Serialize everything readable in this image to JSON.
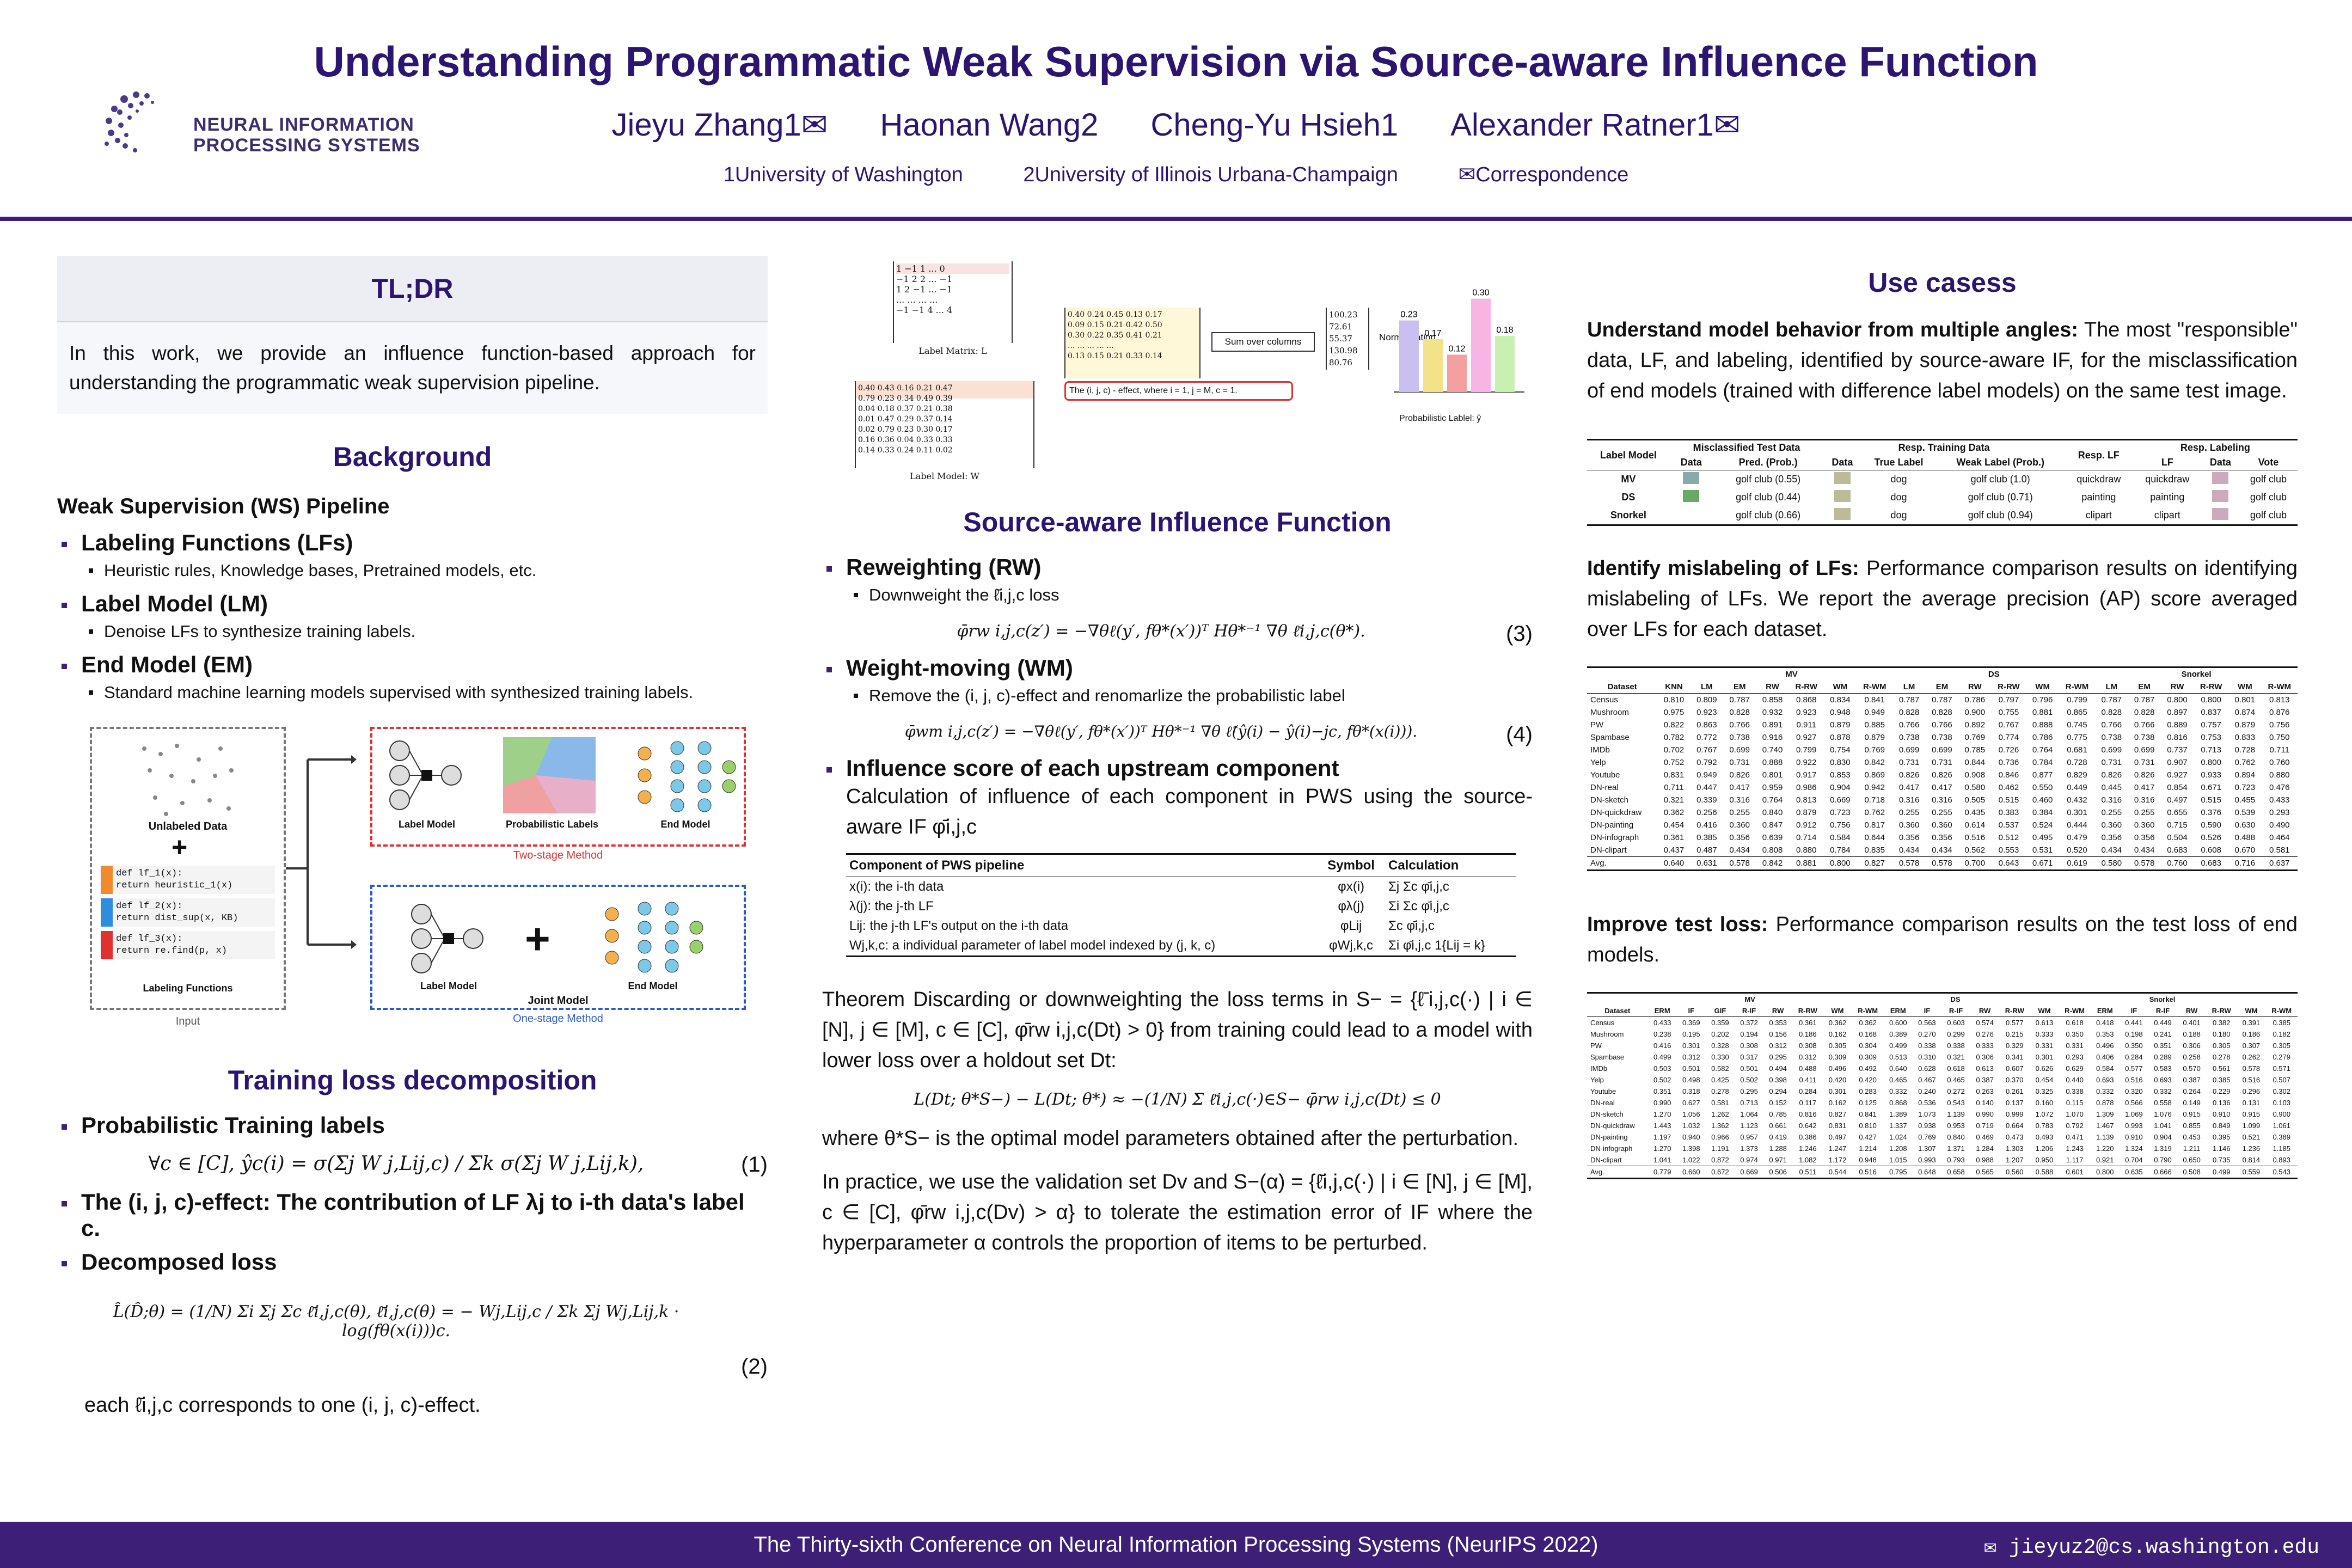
{
  "header": {
    "logo_text": [
      "NEURAL INFORMATION",
      "PROCESSING SYSTEMS"
    ],
    "title": "Understanding Programmatic Weak Supervision via Source-aware Influence Function",
    "authors": [
      "Jieyu Zhang1✉",
      "Haonan Wang2",
      "Cheng-Yu Hsieh1",
      "Alexander Ratner1✉"
    ],
    "affiliations": [
      "1University of Washington",
      "2University of Illinois Urbana-Champaign",
      "✉Correspondence"
    ]
  },
  "tldr": {
    "title": "TL;DR",
    "text": "In this work, we provide an influence function-based approach for understanding the programmatic weak supervision pipeline."
  },
  "background": {
    "title": "Background",
    "subtitle": "Weak Supervision (WS) Pipeline",
    "items": [
      {
        "label": "Labeling Functions (LFs)",
        "detail": "Heuristic rules, Knowledge bases, Pretrained models, etc."
      },
      {
        "label": "Label Model (LM)",
        "detail": "Denoise LFs to synthesize training labels."
      },
      {
        "label": "End Model (EM)",
        "detail": "Standard machine learning models supervised with synthesized training labels."
      }
    ],
    "figure": {
      "unlabeled": "Unlabeled Data",
      "lf_code": [
        "def lf_1(x):",
        "  return heuristic_1(x)",
        "def lf_2(x):",
        "  return dist_sup(x, KB)",
        "def lf_3(x):",
        "  return re.find(p, x)"
      ],
      "lf_label": "Labeling Functions",
      "input": "Input",
      "label_model": "Label Model",
      "prob_labels": "Probabilistic Labels",
      "end_model": "End Model",
      "two_stage": "Two-stage Method",
      "joint_model": "Joint Model",
      "one_stage": "One-stage Method"
    }
  },
  "training_loss": {
    "title": "Training loss decomposition",
    "items": [
      "Probabilistic Training labels",
      "The (i, j, c)-effect: The contribution of LF λj to i-th data's label c.",
      "Decomposed loss"
    ],
    "eq1": "∀c ∈ [C],   ŷc(i) = σ(Σj W j,Lij,c) / Σk σ(Σj W j,Lij,k),",
    "eq2": "L̂(D̂;θ) = (1/N) Σi Σj Σc ℓ̄i,j,c(θ),   ℓ̄i,j,c(θ) = − Wj,Lij,c / Σk Σj Wj,Lij,k · log(fθ(x(i)))c.",
    "footnote": "each ℓ̄i,j,c corresponds to one (i, j, c)-effect.",
    "eqnums": [
      "(1)",
      "(2)"
    ]
  },
  "diagram": {
    "label_matrix": "Label Matrix: L",
    "label_model": "Label Model: W",
    "sum_cols": "Sum over columns",
    "normalization": "Normalization",
    "sums": [
      "100.23",
      "72.61",
      "55.37",
      "130.98",
      "80.76"
    ],
    "probs": [
      "0.23",
      "0.17",
      "0.12",
      "0.30",
      "0.18"
    ],
    "prob_label": "Probabilistic Lablel: ŷ",
    "effect_note": "The (i, j, c) - effect, where i = 1, j = M, c = 1."
  },
  "influence": {
    "title": "Source-aware Influence Function",
    "rw_title": "Reweighting (RW)",
    "rw_detail": "Downweight the ℓ̄i,j,c loss",
    "eq3": "φ̄rw i,j,c(z′) = −∇θℓ(y′, fθ*(x′))ᵀ Hθ*⁻¹ ∇θ ℓ̄i,j,c(θ*).",
    "wm_title": "Weight-moving (WM)",
    "wm_detail": "Remove the (i, j, c)-effect and renomarlize the probabilistic label",
    "eq4": "φ̄wm i,j,c(z′) = −∇θℓ(y′, fθ*(x′))ᵀ Hθ*⁻¹ ∇θ ℓ̂(ŷ(i) − ŷ(i)−jc, fθ*(x(i))).",
    "score_title": "Influence score of each upstream component",
    "score_text": "Calculation of influence of each component in PWS using the source-aware IF φ̄i,j,c",
    "eqnums": [
      "(3)",
      "(4)"
    ],
    "table": {
      "headers": [
        "Component of PWS pipeline",
        "Symbol",
        "Calculation"
      ],
      "rows": [
        [
          "x(i): the i-th data",
          "φx(i)",
          "Σj Σc φ̄i,j,c"
        ],
        [
          "λ(j): the j-th LF",
          "φλ(j)",
          "Σi Σc φ̄i,j,c"
        ],
        [
          "Lij: the j-th LF's output on the i-th data",
          "φLij",
          "Σc φ̄i,j,c"
        ],
        [
          "Wj,k,c: a individual parameter of label model indexed by (j, k, c)",
          "φWj,k,c",
          "Σi φ̄i,j,c 1{Lij = k}"
        ]
      ]
    },
    "theorem": "Theorem  Discarding or downweighting the loss terms in S− = {ℓ̄i,j,c(·) | i ∈ [N], j ∈ [M], c ∈ [C], φ̄rw i,j,c(Dt) > 0} from training could lead to a model with lower loss over a holdout set Dt:",
    "eq5": "L(Dt; θ*S−) − L(Dt; θ*) ≈ −(1/N) Σ ℓ̄i,j,c(·)∈S− φ̄rw i,j,c(Dt) ≤ 0",
    "after": "where θ*S− is the optimal model parameters obtained after the perturbation.",
    "practice": "In practice, we use the validation set Dv and S−(α) = {ℓ̄i,j,c(·) | i ∈ [N], j ∈ [M], c ∈ [C], φ̄rw i,j,c(Dv) > α} to tolerate the estimation error of IF where the hyperparameter α controls the proportion of items to be perturbed."
  },
  "usecases": {
    "title": "Use casess",
    "uc1_head": "Understand model behavior from multiple angles:",
    "uc1_text": "The most \"responsible\" data, LF, and labeling, identified by source-aware IF, for the misclassification of end models (trained with difference label models) on the same test image.",
    "t1": {
      "groups": [
        "Misclassified Test Data",
        "Resp. Training Data",
        "Resp. LF",
        "Resp. Labeling"
      ],
      "headers": [
        "Label Model",
        "Data",
        "Pred. (Prob.)",
        "Data",
        "True Label",
        "Weak Label (Prob.)",
        "",
        "LF",
        "Data",
        "Vote"
      ],
      "rows": [
        [
          "MV",
          "golf club (0.55)",
          "dog",
          "golf club (1.0)",
          "quickdraw",
          "quickdraw",
          "golf club"
        ],
        [
          "DS",
          "golf club (0.44)",
          "dog",
          "golf club (0.71)",
          "painting",
          "painting",
          "golf club"
        ],
        [
          "Snorkel",
          "golf club (0.66)",
          "dog",
          "golf club (0.94)",
          "clipart",
          "clipart",
          "golf club"
        ]
      ]
    },
    "uc2_head": "Identify mislabeling of LFs:",
    "uc2_text": "Performance comparison results on identifying mislabeling of LFs. We report the average precision (AP) score averaged over LFs for each dataset.",
    "t2": {
      "groups": [
        "MV",
        "DS",
        "Snorkel"
      ],
      "headers": [
        "Dataset",
        "KNN",
        "LM",
        "EM",
        "RW",
        "R-RW",
        "WM",
        "R-WM",
        "LM",
        "EM",
        "RW",
        "R-RW",
        "WM",
        "R-WM",
        "LM",
        "EM",
        "RW",
        "R-RW",
        "WM",
        "R-WM"
      ],
      "rows": [
        [
          "Census",
          "0.810",
          "0.809",
          "0.787",
          "0.858",
          "0.868",
          "0.834",
          "0.841",
          "0.787",
          "0.787",
          "0.786",
          "0.797",
          "0.796",
          "0.799",
          "0.787",
          "0.787",
          "0.800",
          "0.800",
          "0.801",
          "0.813"
        ],
        [
          "Mushroom",
          "0.975",
          "0.923",
          "0.828",
          "0.932",
          "0.923",
          "0.948",
          "0.949",
          "0.828",
          "0.828",
          "0.900",
          "0.755",
          "0.881",
          "0.865",
          "0.828",
          "0.828",
          "0.897",
          "0.837",
          "0.874",
          "0.876"
        ],
        [
          "PW",
          "0.822",
          "0.863",
          "0.766",
          "0.891",
          "0.911",
          "0.879",
          "0.885",
          "0.766",
          "0.766",
          "0.892",
          "0.767",
          "0.888",
          "0.745",
          "0.766",
          "0.766",
          "0.889",
          "0.757",
          "0.879",
          "0.756"
        ],
        [
          "Spambase",
          "0.782",
          "0.772",
          "0.738",
          "0.916",
          "0.927",
          "0.878",
          "0.879",
          "0.738",
          "0.738",
          "0.769",
          "0.774",
          "0.786",
          "0.775",
          "0.738",
          "0.738",
          "0.816",
          "0.753",
          "0.833",
          "0.750"
        ],
        [
          "IMDb",
          "0.702",
          "0.767",
          "0.699",
          "0.740",
          "0.799",
          "0.754",
          "0.769",
          "0.699",
          "0.699",
          "0.785",
          "0.726",
          "0.764",
          "0.681",
          "0.699",
          "0.699",
          "0.737",
          "0.713",
          "0.728",
          "0.711"
        ],
        [
          "Yelp",
          "0.752",
          "0.792",
          "0.731",
          "0.888",
          "0.922",
          "0.830",
          "0.842",
          "0.731",
          "0.731",
          "0.844",
          "0.736",
          "0.784",
          "0.728",
          "0.731",
          "0.731",
          "0.907",
          "0.800",
          "0.762",
          "0.760"
        ],
        [
          "Youtube",
          "0.831",
          "0.949",
          "0.826",
          "0.801",
          "0.917",
          "0.853",
          "0.869",
          "0.826",
          "0.826",
          "0.908",
          "0.846",
          "0.877",
          "0.829",
          "0.826",
          "0.826",
          "0.927",
          "0.933",
          "0.894",
          "0.880"
        ],
        [
          "DN-real",
          "0.711",
          "0.447",
          "0.417",
          "0.959",
          "0.986",
          "0.904",
          "0.942",
          "0.417",
          "0.417",
          "0.580",
          "0.462",
          "0.550",
          "0.449",
          "0.445",
          "0.417",
          "0.854",
          "0.671",
          "0.723",
          "0.476"
        ],
        [
          "DN-sketch",
          "0.321",
          "0.339",
          "0.316",
          "0.764",
          "0.813",
          "0.669",
          "0.718",
          "0.316",
          "0.316",
          "0.505",
          "0.515",
          "0.460",
          "0.432",
          "0.316",
          "0.316",
          "0.497",
          "0.515",
          "0.455",
          "0.433"
        ],
        [
          "DN-quickdraw",
          "0.362",
          "0.256",
          "0.255",
          "0.840",
          "0.879",
          "0.723",
          "0.762",
          "0.255",
          "0.255",
          "0.435",
          "0.383",
          "0.384",
          "0.301",
          "0.255",
          "0.255",
          "0.655",
          "0.376",
          "0.539",
          "0.293"
        ],
        [
          "DN-painting",
          "0.454",
          "0.416",
          "0.360",
          "0.847",
          "0.912",
          "0.756",
          "0.817",
          "0.360",
          "0.360",
          "0.614",
          "0.537",
          "0.524",
          "0.444",
          "0.360",
          "0.360",
          "0.715",
          "0.590",
          "0.630",
          "0.490"
        ],
        [
          "DN-infograph",
          "0.361",
          "0.385",
          "0.356",
          "0.639",
          "0.714",
          "0.584",
          "0.644",
          "0.356",
          "0.356",
          "0.516",
          "0.512",
          "0.495",
          "0.479",
          "0.356",
          "0.356",
          "0.504",
          "0.526",
          "0.488",
          "0.464"
        ],
        [
          "DN-clipart",
          "0.437",
          "0.487",
          "0.434",
          "0.808",
          "0.880",
          "0.784",
          "0.835",
          "0.434",
          "0.434",
          "0.562",
          "0.553",
          "0.531",
          "0.520",
          "0.434",
          "0.434",
          "0.683",
          "0.608",
          "0.670",
          "0.581"
        ],
        [
          "Avg.",
          "0.640",
          "0.631",
          "0.578",
          "0.842",
          "0.881",
          "0.800",
          "0.827",
          "0.578",
          "0.578",
          "0.700",
          "0.643",
          "0.671",
          "0.619",
          "0.580",
          "0.578",
          "0.760",
          "0.683",
          "0.716",
          "0.637"
        ]
      ]
    },
    "uc3_head": "Improve test loss:",
    "uc3_text": "Performance comparison results on the test loss of end models.",
    "t3": {
      "groups": [
        "MV",
        "DS",
        "Snorkel"
      ],
      "headers": [
        "Dataset",
        "ERM",
        "IF",
        "GIF",
        "R-IF",
        "RW",
        "R-RW",
        "WM",
        "R-WM",
        "ERM",
        "IF",
        "R-IF",
        "RW",
        "R-RW",
        "WM",
        "R-WM",
        "ERM",
        "IF",
        "R-IF",
        "RW",
        "R-RW",
        "WM",
        "R-WM"
      ],
      "rows": [
        [
          "Census",
          "0.433",
          "0.369",
          "0.359",
          "0.372",
          "0.353",
          "0.361",
          "0.362",
          "0.362",
          "0.600",
          "0.563",
          "0.603",
          "0.574",
          "0.577",
          "0.613",
          "0.618",
          "0.418",
          "0.441",
          "0.449",
          "0.401",
          "0.382",
          "0.391",
          "0.385"
        ],
        [
          "Mushroom",
          "0.238",
          "0.195",
          "0.202",
          "0.194",
          "0.156",
          "0.186",
          "0.162",
          "0.168",
          "0.389",
          "0.270",
          "0.299",
          "0.276",
          "0.215",
          "0.333",
          "0.350",
          "0.353",
          "0.198",
          "0.241",
          "0.188",
          "0.180",
          "0.186",
          "0.182"
        ],
        [
          "PW",
          "0.416",
          "0.301",
          "0.328",
          "0.308",
          "0.312",
          "0.308",
          "0.305",
          "0.304",
          "0.499",
          "0.338",
          "0.338",
          "0.333",
          "0.329",
          "0.331",
          "0.331",
          "0.496",
          "0.350",
          "0.351",
          "0.306",
          "0.305",
          "0.307",
          "0.305"
        ],
        [
          "Spambase",
          "0.499",
          "0.312",
          "0.330",
          "0.317",
          "0.295",
          "0.312",
          "0.309",
          "0.309",
          "0.513",
          "0.310",
          "0.321",
          "0.306",
          "0.341",
          "0.301",
          "0.293",
          "0.406",
          "0.284",
          "0.289",
          "0.258",
          "0.278",
          "0.262",
          "0.279"
        ],
        [
          "IMDb",
          "0.503",
          "0.501",
          "0.582",
          "0.501",
          "0.494",
          "0.488",
          "0.496",
          "0.492",
          "0.640",
          "0.628",
          "0.618",
          "0.613",
          "0.607",
          "0.626",
          "0.629",
          "0.584",
          "0.577",
          "0.583",
          "0.570",
          "0.561",
          "0.578",
          "0.571"
        ],
        [
          "Yelp",
          "0.502",
          "0.498",
          "0.425",
          "0.502",
          "0.398",
          "0.411",
          "0.420",
          "0.420",
          "0.465",
          "0.467",
          "0.465",
          "0.387",
          "0.370",
          "0.454",
          "0.440",
          "0.693",
          "0.516",
          "0.693",
          "0.387",
          "0.385",
          "0.516",
          "0.507"
        ],
        [
          "Youtube",
          "0.351",
          "0.318",
          "0.278",
          "0.295",
          "0.294",
          "0.284",
          "0.301",
          "0.283",
          "0.332",
          "0.240",
          "0.272",
          "0.263",
          "0.261",
          "0.325",
          "0.338",
          "0.332",
          "0.320",
          "0.332",
          "0.264",
          "0.229",
          "0.296",
          "0.302"
        ],
        [
          "DN-real",
          "0.990",
          "0.627",
          "0.581",
          "0.713",
          "0.152",
          "0.117",
          "0.162",
          "0.125",
          "0.868",
          "0.536",
          "0.543",
          "0.140",
          "0.137",
          "0.160",
          "0.115",
          "0.878",
          "0.566",
          "0.558",
          "0.149",
          "0.136",
          "0.131",
          "0.103"
        ],
        [
          "DN-sketch",
          "1.270",
          "1.056",
          "1.262",
          "1.064",
          "0.785",
          "0.816",
          "0.827",
          "0.841",
          "1.389",
          "1.073",
          "1.139",
          "0.990",
          "0.999",
          "1.072",
          "1.070",
          "1.309",
          "1.069",
          "1.076",
          "0.915",
          "0.910",
          "0.915",
          "0.900"
        ],
        [
          "DN-quickdraw",
          "1.443",
          "1.032",
          "1.362",
          "1.123",
          "0.661",
          "0.642",
          "0.831",
          "0.810",
          "1.337",
          "0.938",
          "0.953",
          "0.719",
          "0.664",
          "0.783",
          "0.792",
          "1.467",
          "0.993",
          "1.041",
          "0.855",
          "0.849",
          "1.099",
          "1.061"
        ],
        [
          "DN-painting",
          "1.197",
          "0.940",
          "0.966",
          "0.957",
          "0.419",
          "0.386",
          "0.497",
          "0.427",
          "1.024",
          "0.769",
          "0.840",
          "0.469",
          "0.473",
          "0.493",
          "0.471",
          "1.139",
          "0.910",
          "0.904",
          "0.453",
          "0.395",
          "0.521",
          "0.389"
        ],
        [
          "DN-infograph",
          "1.270",
          "1.398",
          "1.191",
          "1.373",
          "1.288",
          "1.246",
          "1.247",
          "1.214",
          "1.208",
          "1.307",
          "1.371",
          "1.284",
          "1.303",
          "1.206",
          "1.243",
          "1.220",
          "1.324",
          "1.319",
          "1.211",
          "1.146",
          "1.236",
          "1.185"
        ],
        [
          "DN-clipart",
          "1.041",
          "1.022",
          "0.872",
          "0.974",
          "0.971",
          "1.082",
          "1.172",
          "0.948",
          "1.015",
          "0.993",
          "0.793",
          "0.988",
          "1.207",
          "0.950",
          "1.117",
          "0.921",
          "0.704",
          "0.790",
          "0.650",
          "0.735",
          "0.814",
          "0.893"
        ],
        [
          "Avg.",
          "0.779",
          "0.660",
          "0.672",
          "0.669",
          "0.506",
          "0.511",
          "0.544",
          "0.516",
          "0.795",
          "0.648",
          "0.658",
          "0.565",
          "0.560",
          "0.588",
          "0.601",
          "0.800",
          "0.635",
          "0.666",
          "0.508",
          "0.499",
          "0.559",
          "0.543"
        ]
      ]
    }
  },
  "footer": {
    "conference": "The Thirty-sixth Conference on Neural Information Processing Systems (NeurIPS 2022)",
    "email": "✉ jieyuz2@cs.washington.edu"
  },
  "colors": {
    "primary": "#2c1570",
    "rule": "#3d1f77",
    "red": "#e03030",
    "blue": "#2a5ad0"
  }
}
